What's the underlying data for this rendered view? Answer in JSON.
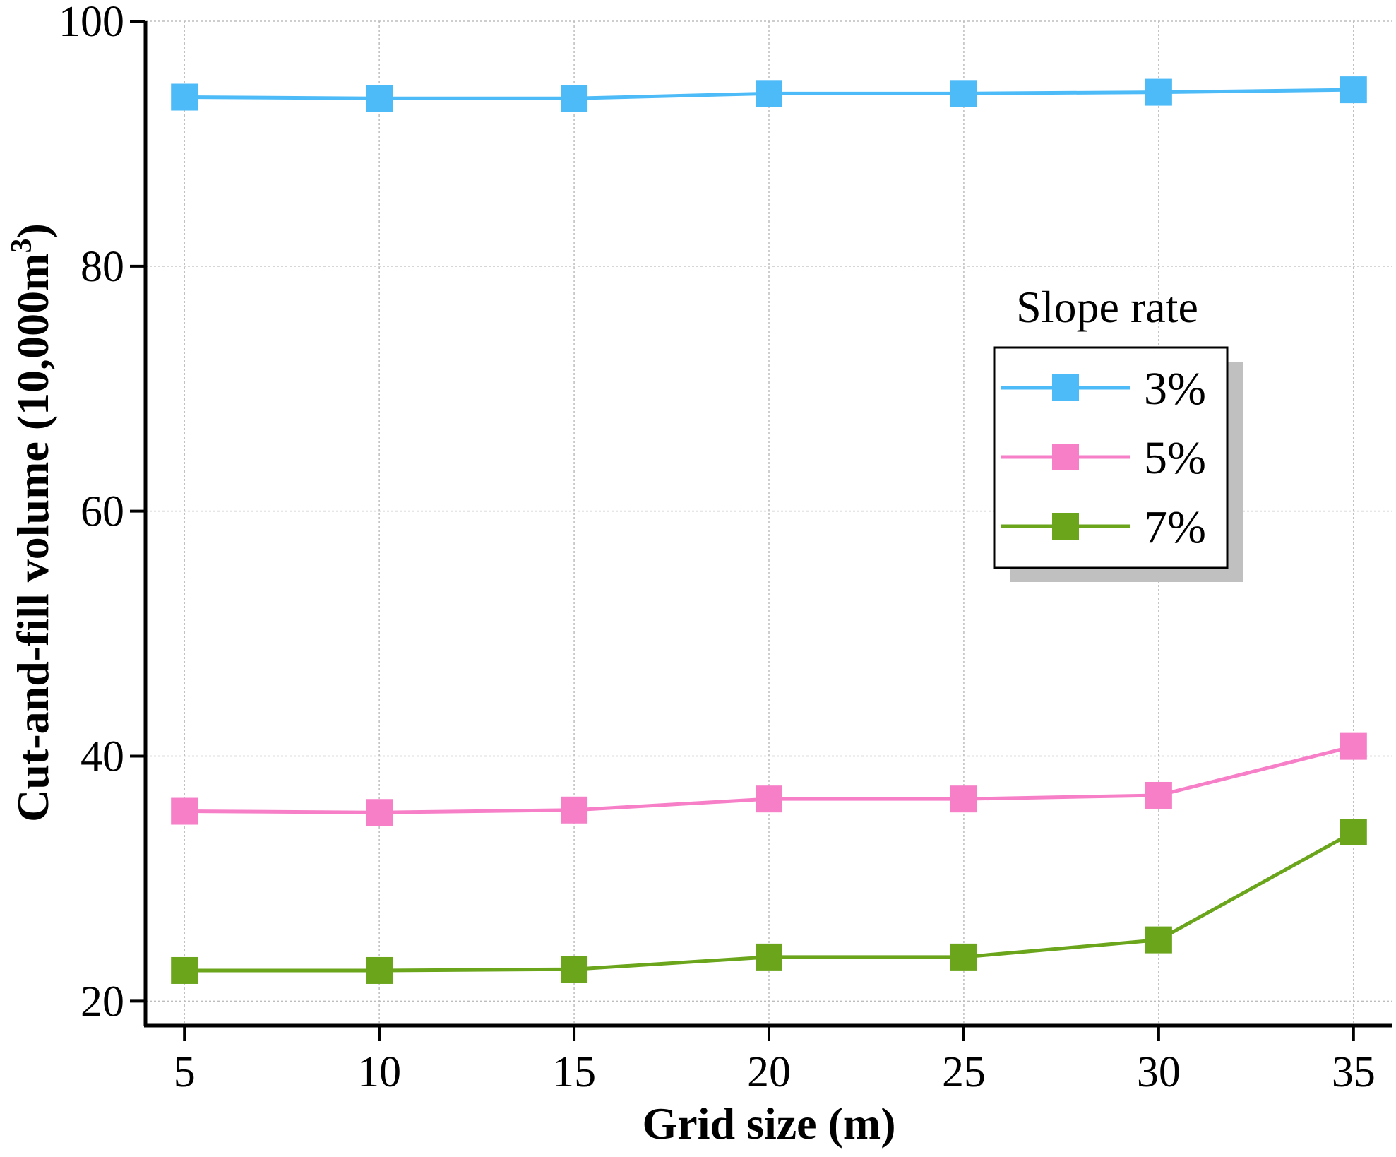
{
  "chart_data": {
    "type": "line",
    "title": "",
    "xlabel": "Grid size (m)",
    "ylabel_main": "Cut-and-fill volume (10,000m",
    "ylabel_sup": "3",
    "ylabel_tail": ")",
    "x": [
      5,
      10,
      15,
      20,
      25,
      30,
      35
    ],
    "xticks": [
      5,
      10,
      15,
      20,
      25,
      30,
      35
    ],
    "xlim": [
      4,
      36
    ],
    "yticks": [
      20,
      40,
      60,
      80,
      100
    ],
    "ylim": [
      18,
      100
    ],
    "grid": true,
    "legend": {
      "title": "Slope rate",
      "position": "right"
    },
    "series": [
      {
        "name": "3%",
        "color": "#4dbbf7",
        "values": [
          93.8,
          93.7,
          93.7,
          94.1,
          94.1,
          94.2,
          94.4
        ]
      },
      {
        "name": "5%",
        "color": "#f67fc8",
        "values": [
          35.5,
          35.4,
          35.6,
          36.5,
          36.5,
          36.8,
          40.8
        ]
      },
      {
        "name": "7%",
        "color": "#6aa51c",
        "values": [
          22.5,
          22.5,
          22.6,
          23.6,
          23.6,
          25.0,
          33.8
        ]
      }
    ]
  }
}
